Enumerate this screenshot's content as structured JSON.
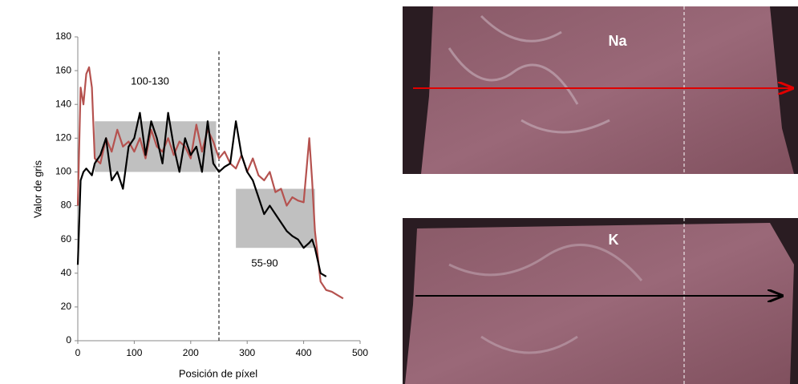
{
  "chart_data": {
    "type": "line",
    "x_label": "Posición de píxel",
    "y_label": "Valor de gris",
    "x": [
      0,
      5,
      10,
      15,
      20,
      25,
      30,
      40,
      50,
      60,
      70,
      80,
      90,
      100,
      110,
      120,
      130,
      140,
      150,
      160,
      170,
      180,
      190,
      200,
      210,
      220,
      230,
      240,
      250,
      260,
      270,
      280,
      290,
      300,
      310,
      320,
      330,
      340,
      350,
      360,
      370,
      380,
      390,
      400,
      410,
      415,
      420,
      430,
      440,
      450,
      460,
      470
    ],
    "series": [
      {
        "color": "#b5524f",
        "values": [
          80,
          150,
          140,
          158,
          162,
          150,
          108,
          105,
          120,
          112,
          125,
          115,
          118,
          112,
          120,
          108,
          125,
          115,
          112,
          120,
          110,
          118,
          115,
          108,
          128,
          112,
          125,
          118,
          108,
          112,
          105,
          102,
          110,
          100,
          108,
          98,
          95,
          100,
          88,
          90,
          80,
          85,
          83,
          82,
          120,
          95,
          65,
          35,
          30,
          29,
          27,
          25
        ]
      },
      {
        "color": "#000000",
        "values": [
          45,
          95,
          100,
          102,
          100,
          98,
          105,
          110,
          120,
          95,
          100,
          90,
          115,
          120,
          135,
          110,
          130,
          120,
          105,
          135,
          115,
          100,
          120,
          110,
          115,
          100,
          130,
          105,
          100,
          103,
          105,
          130,
          110,
          100,
          95,
          85,
          75,
          80,
          75,
          70,
          65,
          62,
          60,
          55,
          58,
          60,
          55,
          40,
          38,
          null,
          null,
          null
        ]
      }
    ],
    "xlim": [
      0,
      500
    ],
    "xticks": [
      0,
      100,
      200,
      300,
      400,
      500
    ],
    "ylim": [
      0,
      180
    ],
    "yticks": [
      0,
      20,
      40,
      60,
      80,
      100,
      120,
      140,
      160,
      180
    ],
    "shaded_regions": [
      {
        "label": "100-130",
        "x": [
          30,
          245
        ],
        "y": [
          100,
          130
        ]
      },
      {
        "label": "55-90",
        "x": [
          280,
          420
        ],
        "y": [
          55,
          90
        ]
      }
    ],
    "vline": 250,
    "images": [
      {
        "label": "Na"
      },
      {
        "label": "K"
      }
    ]
  }
}
